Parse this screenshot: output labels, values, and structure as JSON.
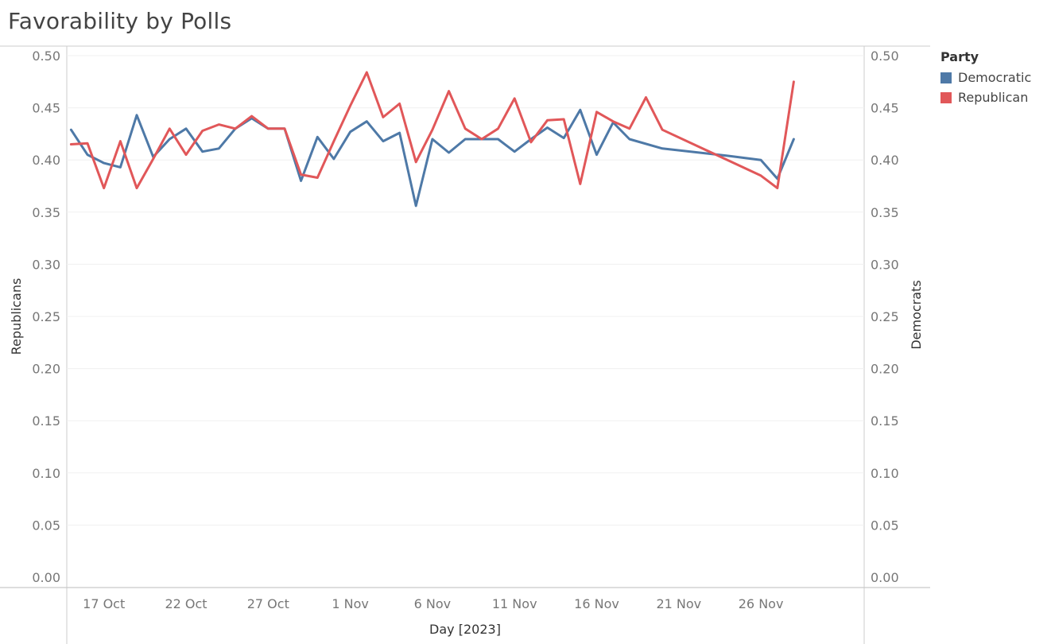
{
  "title": "Favorability by Polls",
  "legend": {
    "title": "Party",
    "items": [
      {
        "label": "Democratic",
        "color": "#4e79a7"
      },
      {
        "label": "Republican",
        "color": "#e15759"
      }
    ]
  },
  "chart_data": {
    "type": "line",
    "title": "Favorability by Polls",
    "xlabel": "Day [2023]",
    "ylabel_left": "Republicans",
    "ylabel_right": "Democrats",
    "x_range": [
      "2023-10-12",
      "2023-12-01"
    ],
    "ylim": [
      0,
      0.5
    ],
    "y_ticks": [
      "0.00",
      "0.05",
      "0.10",
      "0.15",
      "0.20",
      "0.25",
      "0.30",
      "0.35",
      "0.40",
      "0.45",
      "0.50"
    ],
    "x_ticks": [
      {
        "date": "2023-10-17",
        "label": "17 Oct"
      },
      {
        "date": "2023-10-22",
        "label": "22 Oct"
      },
      {
        "date": "2023-10-27",
        "label": "27 Oct"
      },
      {
        "date": "2023-11-01",
        "label": "1 Nov"
      },
      {
        "date": "2023-11-06",
        "label": "6 Nov"
      },
      {
        "date": "2023-11-11",
        "label": "11 Nov"
      },
      {
        "date": "2023-11-16",
        "label": "16 Nov"
      },
      {
        "date": "2023-11-21",
        "label": "21 Nov"
      },
      {
        "date": "2023-11-26",
        "label": "26 Nov"
      }
    ],
    "grid": true,
    "legend_position": "top-right",
    "series": [
      {
        "name": "Democratic",
        "color": "#4e79a7",
        "axis": "right",
        "points": [
          [
            "2023-10-15",
            0.429
          ],
          [
            "2023-10-16",
            0.405
          ],
          [
            "2023-10-17",
            0.397
          ],
          [
            "2023-10-18",
            0.393
          ],
          [
            "2023-10-19",
            0.443
          ],
          [
            "2023-10-20",
            0.403
          ],
          [
            "2023-10-21",
            0.42
          ],
          [
            "2023-10-22",
            0.43
          ],
          [
            "2023-10-23",
            0.408
          ],
          [
            "2023-10-24",
            0.411
          ],
          [
            "2023-10-25",
            0.43
          ],
          [
            "2023-10-26",
            0.44
          ],
          [
            "2023-10-27",
            0.43
          ],
          [
            "2023-10-28",
            0.43
          ],
          [
            "2023-10-29",
            0.38
          ],
          [
            "2023-10-30",
            0.422
          ],
          [
            "2023-10-31",
            0.401
          ],
          [
            "2023-11-01",
            0.427
          ],
          [
            "2023-11-02",
            0.437
          ],
          [
            "2023-11-03",
            0.418
          ],
          [
            "2023-11-04",
            0.426
          ],
          [
            "2023-11-05",
            0.356
          ],
          [
            "2023-11-06",
            0.42
          ],
          [
            "2023-11-07",
            0.407
          ],
          [
            "2023-11-08",
            0.42
          ],
          [
            "2023-11-09",
            0.42
          ],
          [
            "2023-11-10",
            0.42
          ],
          [
            "2023-11-11",
            0.408
          ],
          [
            "2023-11-12",
            0.42
          ],
          [
            "2023-11-13",
            0.431
          ],
          [
            "2023-11-14",
            0.421
          ],
          [
            "2023-11-15",
            0.448
          ],
          [
            "2023-11-16",
            0.405
          ],
          [
            "2023-11-17",
            0.436
          ],
          [
            "2023-11-18",
            0.42
          ],
          [
            "2023-11-20",
            0.411
          ],
          [
            "2023-11-24",
            0.404
          ],
          [
            "2023-11-26",
            0.4
          ],
          [
            "2023-11-27",
            0.382
          ],
          [
            "2023-11-28",
            0.42
          ]
        ]
      },
      {
        "name": "Republican",
        "color": "#e15759",
        "axis": "left",
        "points": [
          [
            "2023-10-15",
            0.415
          ],
          [
            "2023-10-16",
            0.416
          ],
          [
            "2023-10-17",
            0.373
          ],
          [
            "2023-10-18",
            0.418
          ],
          [
            "2023-10-19",
            0.373
          ],
          [
            "2023-10-20",
            0.401
          ],
          [
            "2023-10-21",
            0.43
          ],
          [
            "2023-10-22",
            0.405
          ],
          [
            "2023-10-23",
            0.428
          ],
          [
            "2023-10-24",
            0.434
          ],
          [
            "2023-10-25",
            0.43
          ],
          [
            "2023-10-26",
            0.442
          ],
          [
            "2023-10-27",
            0.43
          ],
          [
            "2023-10-28",
            0.43
          ],
          [
            "2023-10-29",
            0.386
          ],
          [
            "2023-10-30",
            0.383
          ],
          [
            "2023-10-31",
            0.418
          ],
          [
            "2023-11-01",
            0.452
          ],
          [
            "2023-11-02",
            0.484
          ],
          [
            "2023-11-03",
            0.441
          ],
          [
            "2023-11-04",
            0.454
          ],
          [
            "2023-11-05",
            0.398
          ],
          [
            "2023-11-06",
            0.429
          ],
          [
            "2023-11-07",
            0.466
          ],
          [
            "2023-11-08",
            0.43
          ],
          [
            "2023-11-09",
            0.42
          ],
          [
            "2023-11-10",
            0.43
          ],
          [
            "2023-11-11",
            0.459
          ],
          [
            "2023-11-12",
            0.417
          ],
          [
            "2023-11-13",
            0.438
          ],
          [
            "2023-11-14",
            0.439
          ],
          [
            "2023-11-15",
            0.377
          ],
          [
            "2023-11-16",
            0.446
          ],
          [
            "2023-11-17",
            0.437
          ],
          [
            "2023-11-18",
            0.43
          ],
          [
            "2023-11-19",
            0.46
          ],
          [
            "2023-11-20",
            0.429
          ],
          [
            "2023-11-26",
            0.385
          ],
          [
            "2023-11-27",
            0.373
          ],
          [
            "2023-11-28",
            0.475
          ]
        ]
      }
    ]
  }
}
